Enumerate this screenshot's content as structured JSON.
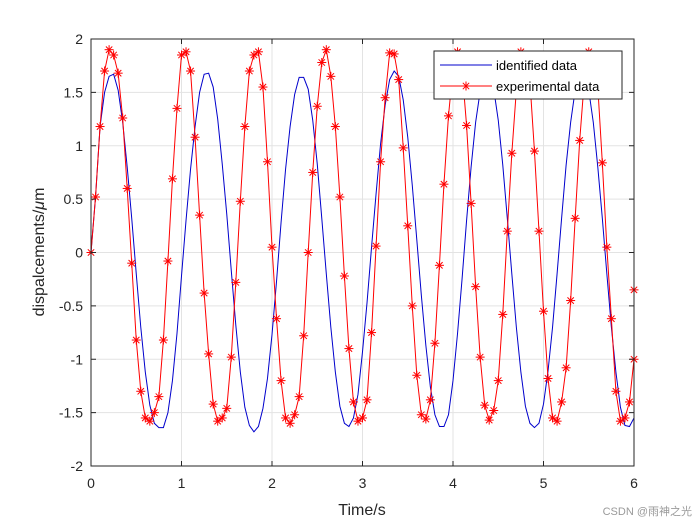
{
  "chart_data": {
    "type": "line",
    "xlabel": "Time/s",
    "ylabel_text": "dispalcements/",
    "ylabel_unit_symbol": "μ",
    "ylabel_unit": "m",
    "xlim": [
      0,
      6
    ],
    "ylim": [
      -2,
      2
    ],
    "xticks": [
      "0",
      "1",
      "2",
      "3",
      "4",
      "5",
      "6"
    ],
    "yticks": [
      "2",
      "1.5",
      "1",
      "0.5",
      "0",
      "-0.5",
      "-1",
      "-1.5",
      "-2"
    ],
    "xtick_values": [
      0,
      1,
      2,
      3,
      4,
      5,
      6
    ],
    "ytick_values": [
      2,
      1.5,
      1,
      0.5,
      0,
      -0.5,
      -1,
      -1.5,
      -2
    ],
    "grid": true,
    "legend_position": "top-right",
    "sample_interval": 0.05,
    "series": [
      {
        "name": "identified data",
        "color": "#0000cc",
        "marker": "none",
        "values": [
          0,
          0.52,
          1.18,
          1.5,
          1.65,
          1.67,
          1.52,
          1.22,
          0.8,
          0.32,
          -0.2,
          -0.7,
          -1.12,
          -1.43,
          -1.6,
          -1.64,
          -1.64,
          -1.5,
          -1.2,
          -0.76,
          -0.22,
          0.3,
          0.78,
          1.18,
          1.5,
          1.67,
          1.68,
          1.55,
          1.25,
          0.83,
          0.36,
          -0.17,
          -0.68,
          -1.12,
          -1.45,
          -1.62,
          -1.68,
          -1.63,
          -1.46,
          -1.18,
          -0.77,
          -0.27,
          0.28,
          0.78,
          1.18,
          1.48,
          1.64,
          1.64,
          1.53,
          1.24,
          0.83,
          0.32,
          -0.2,
          -0.7,
          -1.12,
          -1.44,
          -1.6,
          -1.63,
          -1.55,
          -1.33,
          -0.93,
          -0.47,
          0.05,
          0.55,
          1.02,
          1.38,
          1.62,
          1.7,
          1.65,
          1.43,
          1.08,
          0.63,
          0.12,
          -0.4,
          -0.87,
          -1.26,
          -1.52,
          -1.63,
          -1.63,
          -1.52,
          -1.2,
          -0.76,
          -0.25,
          0.3,
          0.8,
          1.22,
          1.51,
          1.66,
          1.65,
          1.53,
          1.24,
          0.82,
          0.32,
          -0.2,
          -0.7,
          -1.12,
          -1.44,
          -1.6,
          -1.64,
          -1.6,
          -1.42,
          -1.11,
          -0.7,
          -0.2,
          0.32,
          0.82,
          1.22,
          1.52,
          1.66,
          1.66,
          1.52,
          1.22,
          0.8,
          0.32,
          -0.2,
          -0.7,
          -1.12,
          -1.45,
          -1.62,
          -1.63,
          -1.55,
          -1.3,
          -0.93
        ]
      },
      {
        "name": "experimental data",
        "color": "#ff0000",
        "marker": "asterisk",
        "values": [
          0,
          0.52,
          1.18,
          1.7,
          1.9,
          1.85,
          1.68,
          1.26,
          0.6,
          -0.1,
          -0.82,
          -1.3,
          -1.55,
          -1.58,
          -1.5,
          -1.35,
          -0.82,
          -0.08,
          0.69,
          1.35,
          1.85,
          1.88,
          1.7,
          1.08,
          0.35,
          -0.38,
          -0.95,
          -1.42,
          -1.58,
          -1.55,
          -1.46,
          -0.98,
          -0.28,
          0.48,
          1.18,
          1.7,
          1.85,
          1.88,
          1.55,
          0.85,
          0.05,
          -0.62,
          -1.2,
          -1.55,
          -1.6,
          -1.52,
          -1.35,
          -0.78,
          0.0,
          0.75,
          1.37,
          1.78,
          1.9,
          1.65,
          1.18,
          0.52,
          -0.22,
          -0.9,
          -1.4,
          -1.58,
          -1.55,
          -1.38,
          -0.75,
          0.06,
          0.85,
          1.45,
          1.87,
          1.86,
          1.62,
          0.98,
          0.25,
          -0.5,
          -1.15,
          -1.52,
          -1.56,
          -1.38,
          -0.85,
          -0.12,
          0.64,
          1.28,
          1.72,
          1.88,
          1.71,
          1.19,
          0.46,
          -0.32,
          -0.98,
          -1.43,
          -1.57,
          -1.48,
          -1.2,
          -0.58,
          0.2,
          0.93,
          1.52,
          1.88,
          1.85,
          1.6,
          0.95,
          0.2,
          -0.55,
          -1.18,
          -1.55,
          -1.58,
          -1.4,
          -1.08,
          -0.45,
          0.32,
          1.05,
          1.6,
          1.88,
          1.84,
          1.55,
          0.84,
          0.05,
          -0.62,
          -1.3,
          -1.58,
          -1.55,
          -1.4,
          -1.0,
          -0.35
        ]
      }
    ]
  },
  "watermark": "CSDN @雨神之光"
}
